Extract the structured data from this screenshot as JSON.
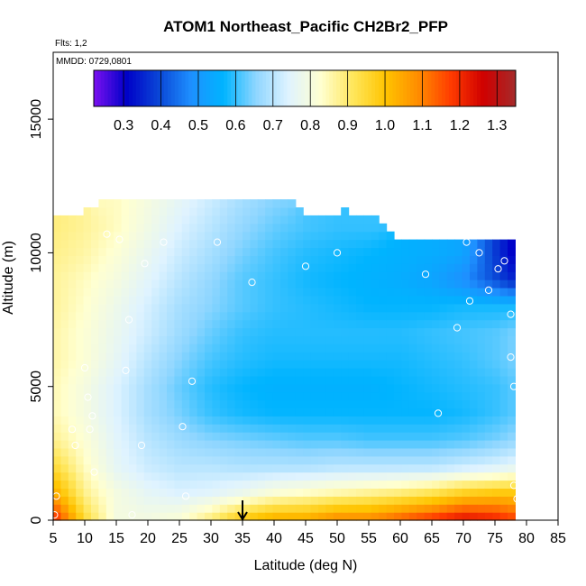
{
  "chart_data": {
    "type": "heatmap",
    "title": "ATOM1 Northeast_Pacific CH2Br2_PFP",
    "subtitle_lines": [
      "Flts: 1,2",
      "MMDD: 0729,0801"
    ],
    "xlabel": "Latitude (deg N)",
    "ylabel": "Altitude (m)",
    "xlim": [
      5,
      85
    ],
    "ylim": [
      0,
      17500
    ],
    "xticks": [
      "5",
      "10",
      "15",
      "20",
      "25",
      "30",
      "35",
      "40",
      "45",
      "50",
      "55",
      "60",
      "65",
      "70",
      "75",
      "80",
      "85"
    ],
    "yticks": [
      "0",
      "5000",
      "10000",
      "15000"
    ],
    "colorbar": {
      "range": [
        0.22,
        1.35
      ],
      "ticks": [
        "0.3",
        "0.4",
        "0.5",
        "0.6",
        "0.7",
        "0.8",
        "0.9",
        "1.0",
        "1.1",
        "1.2",
        "1.3"
      ],
      "colors": [
        "#7b11f0",
        "#0000c8",
        "#0a46d6",
        "#1e90ff",
        "#00b4ff",
        "#8fd6ff",
        "#dff3ff",
        "#ffffd0",
        "#ffe65a",
        "#ffc400",
        "#ff8c00",
        "#ff3c00",
        "#d00000",
        "#a52a2a"
      ]
    },
    "marker_latitude": 35,
    "profile": {
      "latitudes": [
        5,
        10,
        15,
        20,
        25,
        30,
        35,
        40,
        45,
        50,
        55,
        60,
        65,
        70,
        75,
        78
      ],
      "altitude_levels": [
        0,
        1000,
        2000,
        3000,
        4000,
        5000,
        6000,
        7000,
        8000,
        9000,
        10000,
        11000,
        12000
      ],
      "values": [
        [
          1.22,
          0.95,
          0.8,
          0.8,
          0.82,
          0.9,
          1.0,
          1.05,
          1.05,
          1.1,
          1.1,
          1.15,
          1.2,
          1.25,
          1.22,
          1.18
        ],
        [
          1.05,
          0.88,
          0.8,
          0.76,
          0.74,
          0.75,
          0.78,
          0.82,
          0.84,
          0.86,
          0.88,
          0.9,
          0.93,
          0.98,
          1.0,
          1.0
        ],
        [
          0.95,
          0.84,
          0.76,
          0.72,
          0.7,
          0.7,
          0.69,
          0.69,
          0.69,
          0.7,
          0.7,
          0.7,
          0.7,
          0.72,
          0.74,
          0.76
        ],
        [
          0.88,
          0.82,
          0.75,
          0.7,
          0.67,
          0.65,
          0.64,
          0.63,
          0.62,
          0.62,
          0.61,
          0.61,
          0.61,
          0.62,
          0.64,
          0.66
        ],
        [
          0.85,
          0.8,
          0.74,
          0.68,
          0.64,
          0.6,
          0.58,
          0.57,
          0.57,
          0.57,
          0.57,
          0.57,
          0.57,
          0.58,
          0.6,
          0.62
        ],
        [
          0.85,
          0.8,
          0.74,
          0.68,
          0.63,
          0.59,
          0.57,
          0.56,
          0.56,
          0.56,
          0.56,
          0.57,
          0.58,
          0.59,
          0.6,
          0.62
        ],
        [
          0.86,
          0.82,
          0.76,
          0.7,
          0.65,
          0.61,
          0.59,
          0.58,
          0.58,
          0.58,
          0.58,
          0.58,
          0.59,
          0.6,
          0.62,
          0.64
        ],
        [
          0.86,
          0.82,
          0.77,
          0.72,
          0.67,
          0.63,
          0.6,
          0.59,
          0.59,
          0.59,
          0.59,
          0.59,
          0.6,
          0.61,
          0.62,
          0.64
        ],
        [
          0.87,
          0.83,
          0.78,
          0.73,
          0.68,
          0.65,
          0.62,
          0.6,
          0.59,
          0.58,
          0.57,
          0.57,
          0.57,
          0.58,
          0.58,
          0.58
        ],
        [
          0.87,
          0.84,
          0.8,
          0.75,
          0.7,
          0.66,
          0.62,
          0.6,
          0.58,
          0.57,
          0.56,
          0.55,
          0.53,
          0.48,
          0.4,
          0.35
        ],
        [
          0.88,
          0.86,
          0.82,
          0.77,
          0.72,
          0.68,
          0.64,
          0.61,
          0.59,
          0.58,
          0.57,
          0.56,
          0.55,
          0.53,
          0.38,
          0.3
        ],
        [
          0.89,
          0.87,
          0.84,
          0.79,
          0.74,
          0.7,
          0.66,
          0.63,
          0.61,
          0.6,
          0.6,
          null,
          null,
          null,
          null,
          null
        ],
        [
          null,
          null,
          0.84,
          0.8,
          0.76,
          0.72,
          0.68,
          0.65,
          null,
          null,
          null,
          null,
          null,
          null,
          null,
          null
        ]
      ]
    },
    "obs_points": [
      [
        5.2,
        200
      ],
      [
        5.5,
        900
      ],
      [
        8,
        3400
      ],
      [
        8.5,
        2800
      ],
      [
        10,
        5700
      ],
      [
        10.5,
        4600
      ],
      [
        10.8,
        3400
      ],
      [
        11.2,
        3900
      ],
      [
        11.5,
        1800
      ],
      [
        13.5,
        10700
      ],
      [
        15.5,
        10500
      ],
      [
        16.5,
        5600
      ],
      [
        17,
        7500
      ],
      [
        17.5,
        200
      ],
      [
        19,
        2800
      ],
      [
        19.5,
        9600
      ],
      [
        22.5,
        10400
      ],
      [
        25.5,
        3500
      ],
      [
        26,
        900
      ],
      [
        27,
        5200
      ],
      [
        31,
        10400
      ],
      [
        36.5,
        8900
      ],
      [
        45,
        9500
      ],
      [
        50,
        10000
      ],
      [
        64,
        9200
      ],
      [
        66,
        4000
      ],
      [
        67.5,
        11400
      ],
      [
        69,
        7200
      ],
      [
        70.5,
        10400
      ],
      [
        71,
        8200
      ],
      [
        72.5,
        10000
      ],
      [
        74,
        8600
      ],
      [
        75.5,
        9400
      ],
      [
        76.5,
        9700
      ],
      [
        77.5,
        7700
      ],
      [
        77.5,
        6100
      ],
      [
        78,
        5000
      ],
      [
        78,
        1300
      ],
      [
        78.5,
        800
      ],
      [
        79,
        3000
      ],
      [
        79,
        3400
      ],
      [
        79.5,
        5700
      ]
    ]
  }
}
